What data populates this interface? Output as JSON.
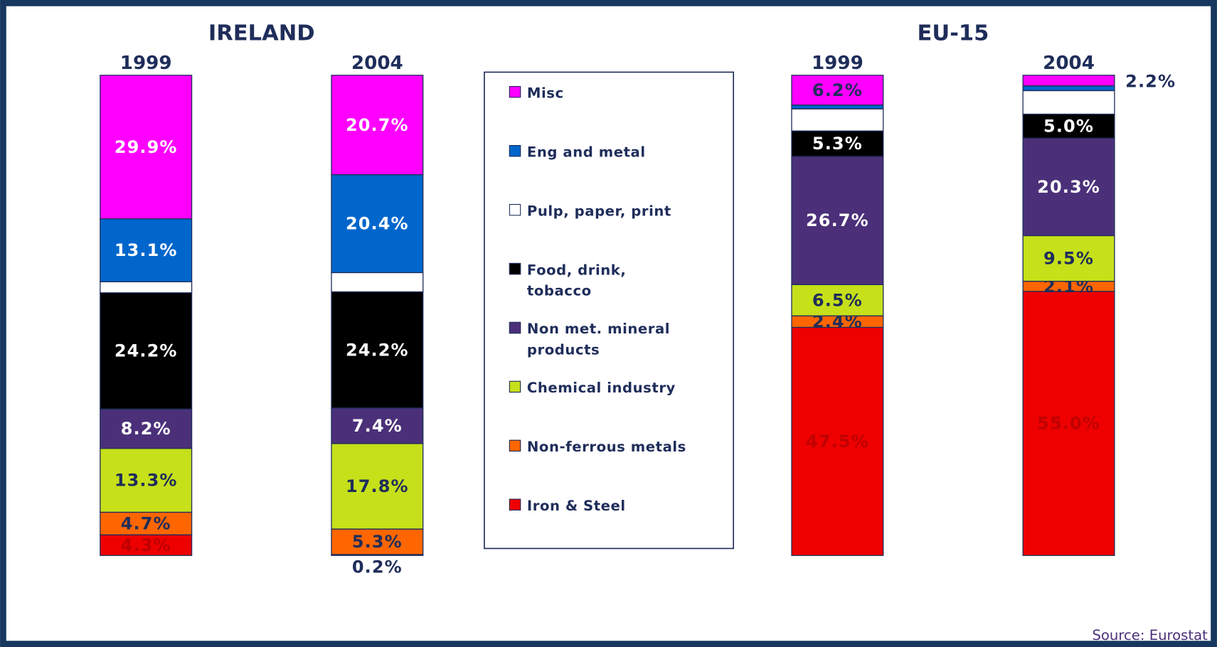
{
  "source": "Source: Eurostat",
  "chart_data": [
    {
      "type": "stacked_bar",
      "title": "IRELAND",
      "categories": [
        "1999",
        "2004"
      ],
      "series": [
        {
          "name": "Iron & Steel",
          "color": "#ee0000",
          "label_color": "#c00000",
          "values": [
            4.3,
            0.2
          ],
          "value_labels": [
            "4.3%",
            "0.2%"
          ]
        },
        {
          "name": "Non-ferrous metals",
          "color": "#ff6600",
          "label_color": "#1f2d5a",
          "values": [
            4.7,
            5.3
          ],
          "value_labels": [
            "4.7%",
            "5.3%"
          ]
        },
        {
          "name": "Chemical industry",
          "color": "#c6e01a",
          "label_color": "#1f2d5a",
          "values": [
            13.3,
            17.8
          ],
          "value_labels": [
            "13.3%",
            "17.8%"
          ]
        },
        {
          "name": "Non met. mineral products",
          "color": "#4b3079",
          "label_color": "#ffffff",
          "values": [
            8.2,
            7.4
          ],
          "value_labels": [
            "8.2%",
            "7.4%"
          ]
        },
        {
          "name": "Food, drink, tobacco",
          "color": "#000000",
          "label_color": "#ffffff",
          "values": [
            24.2,
            24.2
          ],
          "value_labels": [
            "24.2%",
            "24.2%"
          ]
        },
        {
          "name": "Pulp, paper, print",
          "color": "#ffffff",
          "label_color": "#1f2d5a",
          "values": [
            2.3,
            4.0
          ],
          "value_labels": [
            null,
            null
          ]
        },
        {
          "name": "Eng and metal",
          "color": "#0066cc",
          "label_color": "#ffffff",
          "values": [
            13.1,
            20.4
          ],
          "value_labels": [
            "13.1%",
            "20.4%"
          ]
        },
        {
          "name": "Misc",
          "color": "#ff00ff",
          "label_color": "#ffffff",
          "values": [
            29.9,
            20.7
          ],
          "value_labels": [
            "29.9%",
            "20.7%"
          ]
        }
      ]
    },
    {
      "type": "stacked_bar",
      "title": "EU-15",
      "categories": [
        "1999",
        "2004"
      ],
      "series": [
        {
          "name": "Iron & Steel",
          "color": "#ee0000",
          "label_color": "#c00000",
          "values": [
            47.5,
            55.0
          ],
          "value_labels": [
            "47.5%",
            "55.0%"
          ]
        },
        {
          "name": "Non-ferrous metals",
          "color": "#ff6600",
          "label_color": "#1f2d5a",
          "values": [
            2.4,
            2.1
          ],
          "value_labels": [
            "2.4%",
            "2.1%"
          ]
        },
        {
          "name": "Chemical industry",
          "color": "#c6e01a",
          "label_color": "#1f2d5a",
          "values": [
            6.5,
            9.5
          ],
          "value_labels": [
            "6.5%",
            "9.5%"
          ]
        },
        {
          "name": "Non met. mineral products",
          "color": "#4b3079",
          "label_color": "#ffffff",
          "values": [
            26.7,
            20.3
          ],
          "value_labels": [
            "26.7%",
            "20.3%"
          ]
        },
        {
          "name": "Food, drink, tobacco",
          "color": "#000000",
          "label_color": "#ffffff",
          "values": [
            5.3,
            5.0
          ],
          "value_labels": [
            "5.3%",
            "5.0%"
          ]
        },
        {
          "name": "Pulp, paper, print",
          "color": "#ffffff",
          "label_color": "#1f2d5a",
          "values": [
            4.6,
            4.9
          ],
          "value_labels": [
            null,
            null
          ]
        },
        {
          "name": "Eng and metal",
          "color": "#0066cc",
          "label_color": "#ffffff",
          "values": [
            0.8,
            1.0
          ],
          "value_labels": [
            null,
            null
          ]
        },
        {
          "name": "Misc",
          "color": "#ff00ff",
          "label_color": "#1f2d5a",
          "values": [
            6.2,
            2.2
          ],
          "value_labels": [
            "6.2%",
            "2.2%"
          ]
        }
      ]
    }
  ]
}
